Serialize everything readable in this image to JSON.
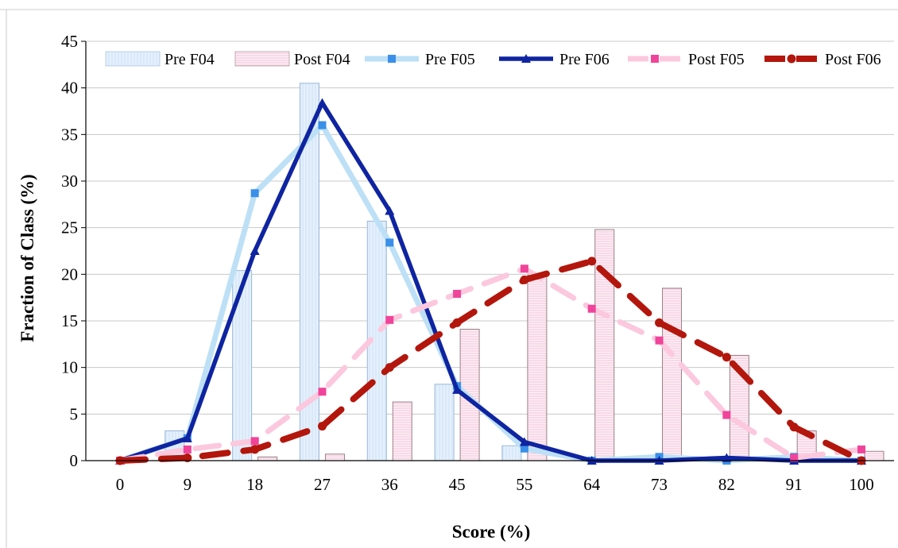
{
  "chart_data": {
    "type": "bar+line",
    "xlabel": "Score (%)",
    "ylabel": "Fraction of Class (%)",
    "ylim": [
      0,
      45
    ],
    "yticks": [
      0,
      5,
      10,
      15,
      20,
      25,
      30,
      35,
      40,
      45
    ],
    "categories": [
      "0",
      "9",
      "18",
      "27",
      "36",
      "45",
      "55",
      "64",
      "73",
      "82",
      "91",
      "100"
    ],
    "grid": "horizontal",
    "legend_position": "top",
    "bar_series": [
      {
        "name": "Pre F04",
        "color": "#dbeafa",
        "edge": "#9ab8d8",
        "pattern": "light-vertical",
        "values": [
          0,
          3.2,
          20.4,
          40.5,
          25.7,
          8.2,
          1.6,
          0,
          0,
          0,
          0,
          0
        ]
      },
      {
        "name": "Post F04",
        "color": "#fbe3ee",
        "edge": "#9a8088",
        "pattern": "pink-horizontal",
        "values": [
          0,
          0,
          0.4,
          0.7,
          6.3,
          14.1,
          19.9,
          24.8,
          18.5,
          11.3,
          3.2,
          1.0
        ]
      }
    ],
    "line_series": [
      {
        "name": "Pre F05",
        "color": "#bde0f6",
        "marker_color": "#3a8fe8",
        "marker": "square",
        "dash": "solid",
        "values": [
          0,
          2.4,
          28.7,
          36.0,
          23.4,
          8.0,
          1.3,
          0,
          0.4,
          0,
          0.4,
          0
        ]
      },
      {
        "name": "Pre F06",
        "color": "#0f24a0",
        "marker_color": "#0f24a0",
        "marker": "triangle",
        "dash": "solid",
        "values": [
          0,
          2.4,
          22.5,
          38.4,
          26.8,
          7.6,
          2.0,
          0,
          0,
          0.3,
          0,
          0
        ]
      },
      {
        "name": "Post F05",
        "color": "#fcc8de",
        "marker_color": "#f0449a",
        "marker": "square",
        "dash": "dashed",
        "values": [
          0,
          1.2,
          2.1,
          7.4,
          15.1,
          17.9,
          20.6,
          16.3,
          12.9,
          4.9,
          0.3,
          1.2
        ]
      },
      {
        "name": "Post F06",
        "color": "#b3160c",
        "marker_color": "#b3160c",
        "marker": "circle",
        "dash": "dashed",
        "values": [
          0,
          0.3,
          1.2,
          3.7,
          10.0,
          14.8,
          19.4,
          21.4,
          14.8,
          11.1,
          3.6,
          0
        ]
      }
    ]
  }
}
